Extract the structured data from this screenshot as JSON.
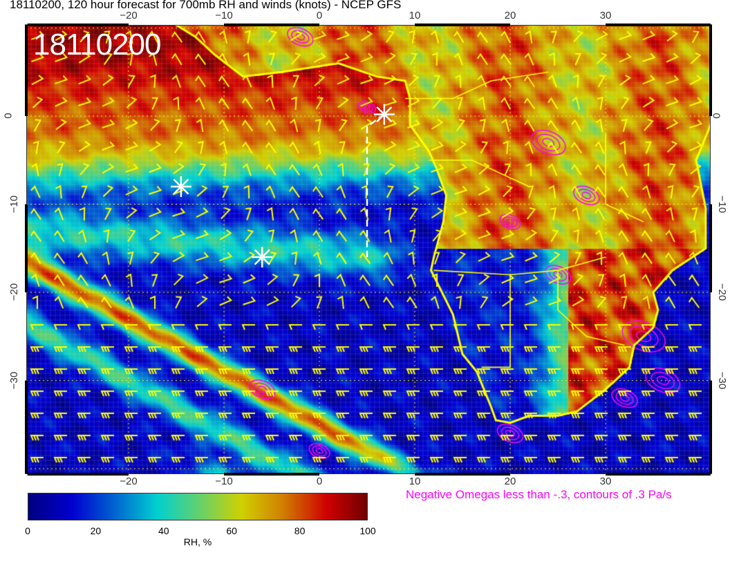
{
  "title": "18110200, 120 hour forecast for 700mb RH and winds (knots) - NCEP GFS",
  "timestamp_label": "18110200",
  "map": {
    "lon_ticks": [
      -20,
      -10,
      0,
      10,
      20,
      30
    ],
    "lat_ticks": [
      0,
      -10,
      -20,
      -30
    ],
    "lon_tick_labels": [
      "−20",
      "−10",
      "0",
      "10",
      "20",
      "30"
    ],
    "lat_tick_labels": [
      "0",
      "−10",
      "−20",
      "−30"
    ],
    "extent": {
      "lon": [
        -30.7,
        41
      ],
      "lat": [
        -40.6,
        10.4
      ]
    },
    "markers": [
      {
        "type": "asterisk",
        "lon": -14.5,
        "lat": -8
      },
      {
        "type": "asterisk",
        "lon": -6,
        "lat": -16
      },
      {
        "type": "asterisk",
        "lon": 6.8,
        "lat": 0.2
      }
    ],
    "colors": {
      "coastline": "#ffff00",
      "wind_barbs": "#ffff00",
      "omega_contours": "#ff00ff",
      "markers": "#ffffff"
    }
  },
  "colorbar": {
    "ticks": [
      "0",
      "20",
      "40",
      "60",
      "80",
      "100"
    ],
    "label": "RH, %",
    "range": [
      0,
      100
    ]
  },
  "omega_note": "Negative Omegas less than -.3, contours of .3 Pa/s"
}
